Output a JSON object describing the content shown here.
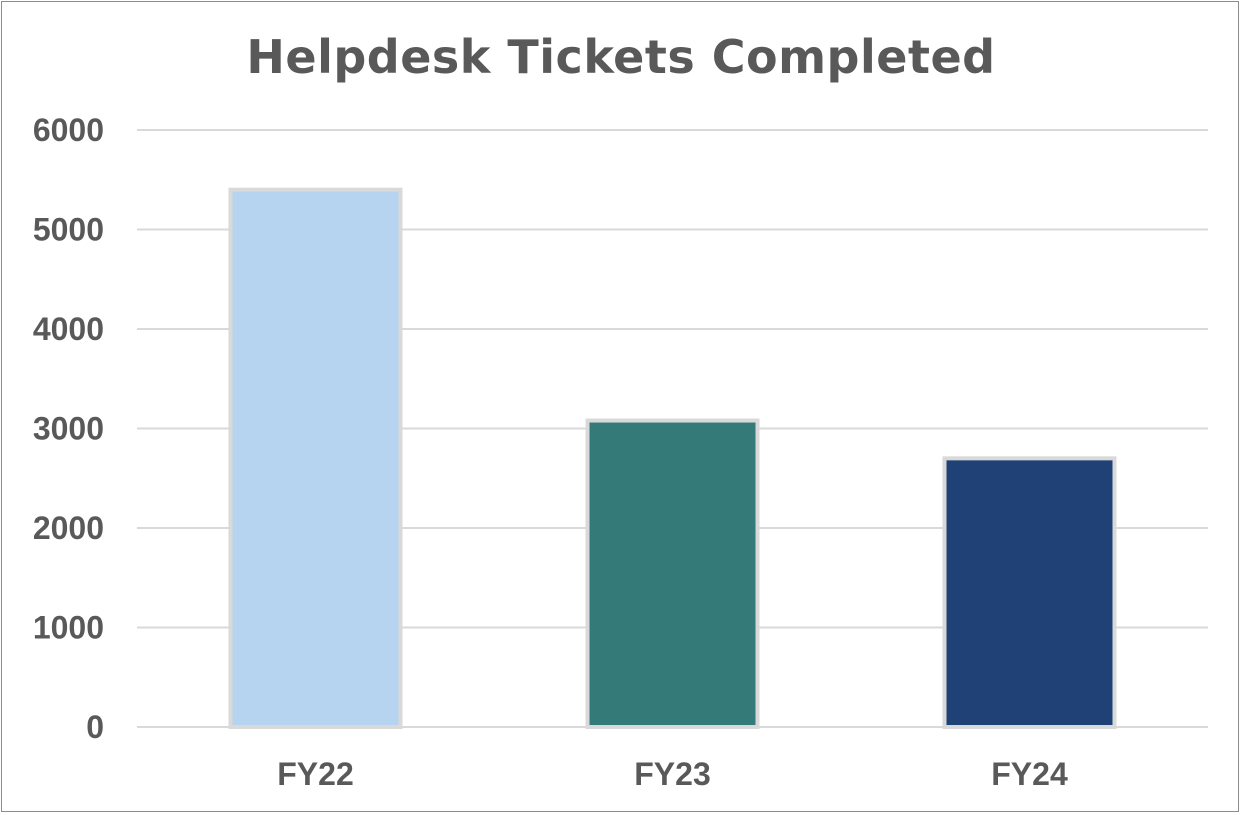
{
  "chart_data": {
    "type": "bar",
    "title": "Helpdesk Tickets Completed",
    "categories": [
      "FY22",
      "FY23",
      "FY24"
    ],
    "values": [
      5400,
      3080,
      2700
    ],
    "ylim": [
      0,
      6000
    ],
    "yticks": [
      "0",
      "1000",
      "2000",
      "3000",
      "4000",
      "5000",
      "6000"
    ],
    "grid": true,
    "legend": "none",
    "colors": [
      "#b6d3f0",
      "#347a79",
      "#1f4176"
    ],
    "bar_border_color": "#d9d9d9",
    "gridline_color": "#d9d9d9",
    "text_color": "#595959"
  }
}
